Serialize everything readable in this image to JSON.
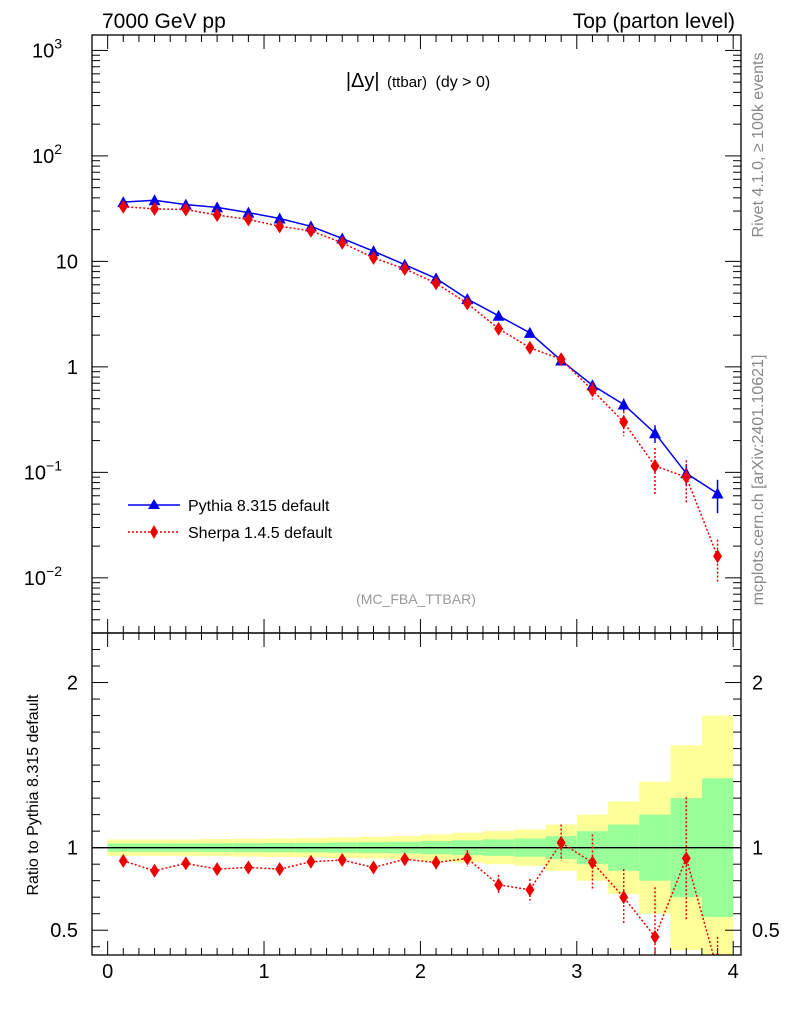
{
  "header": {
    "left": "7000 GeV pp",
    "right": "Top (parton level)"
  },
  "side_text": {
    "rivet": "Rivet 4.1.0, ≥ 100k events",
    "mcplots": "mcplots.cern.ch [arXiv:2401.10621]"
  },
  "plot_title": {
    "main": "|Δy|",
    "small": "(ttbar)",
    "cond": "(dy > 0)"
  },
  "analysis_tag": "(MC_FBA_TTBAR)",
  "colors": {
    "pythia": "#0000ee",
    "sherpa": "#ee0000",
    "band_inner": "#99ff99",
    "band_outer": "#ffff99"
  },
  "chart_data": [
    {
      "type": "line",
      "title": "|Δy| (ttbar) (dy > 0)",
      "xlabel": "",
      "ylabel": "",
      "yscale": "log",
      "xlim": [
        -0.1,
        4.05
      ],
      "ylim": [
        0.003,
        1400
      ],
      "y_ticks": [
        {
          "value": 1000,
          "label": "10",
          "exp": "3"
        },
        {
          "value": 100,
          "label": "10",
          "exp": "2"
        },
        {
          "value": 10,
          "label": "10",
          "exp": ""
        },
        {
          "value": 1,
          "label": "1",
          "exp": ""
        },
        {
          "value": 0.1,
          "label": "10",
          "exp": "−1"
        },
        {
          "value": 0.01,
          "label": "10",
          "exp": "−2"
        }
      ],
      "x": [
        0.1,
        0.3,
        0.5,
        0.7,
        0.9,
        1.1,
        1.3,
        1.5,
        1.7,
        1.9,
        2.1,
        2.3,
        2.5,
        2.7,
        2.9,
        3.1,
        3.3,
        3.5,
        3.7,
        3.9
      ],
      "series": [
        {
          "name": "Pythia 8.315 default",
          "values": [
            36.5,
            38.0,
            34.5,
            32.5,
            29.0,
            25.5,
            21.5,
            16.5,
            12.5,
            9.3,
            6.9,
            4.4,
            3.05,
            2.1,
            1.15,
            0.67,
            0.44,
            0.235,
            0.098,
            0.063
          ],
          "errors": [
            1.0,
            1.0,
            0.9,
            0.9,
            0.8,
            0.7,
            0.6,
            0.5,
            0.4,
            0.3,
            0.25,
            0.18,
            0.14,
            0.1,
            0.08,
            0.07,
            0.06,
            0.045,
            0.022,
            0.022
          ]
        },
        {
          "name": "Sherpa 1.4.5 default",
          "values": [
            33.0,
            31.5,
            31.0,
            27.5,
            25.0,
            21.5,
            19.5,
            15.0,
            10.8,
            8.5,
            6.2,
            4.0,
            2.3,
            1.52,
            1.18,
            0.6,
            0.3,
            0.115,
            0.09,
            0.016
          ],
          "errors": [
            1.0,
            1.0,
            1.0,
            0.9,
            0.8,
            0.7,
            0.7,
            0.6,
            0.45,
            0.35,
            0.28,
            0.22,
            0.17,
            0.14,
            0.12,
            0.11,
            0.08,
            0.055,
            0.04,
            0.007
          ]
        }
      ],
      "legend": "bottom-left"
    },
    {
      "type": "line",
      "title": "",
      "xlabel": "",
      "ylabel": "Ratio to Pythia 8.315 default",
      "xlim": [
        -0.1,
        4.05
      ],
      "ylim": [
        0.35,
        2.3
      ],
      "x_ticks": [
        0,
        1,
        2,
        3,
        4
      ],
      "y_ticks": [
        0.5,
        1,
        2
      ],
      "x": [
        0.1,
        0.3,
        0.5,
        0.7,
        0.9,
        1.1,
        1.3,
        1.5,
        1.7,
        1.9,
        2.1,
        2.3,
        2.5,
        2.7,
        2.9,
        3.1,
        3.3,
        3.5,
        3.7,
        3.9
      ],
      "band_edges": [
        0.0,
        0.2,
        0.4,
        0.6,
        0.8,
        1.0,
        1.2,
        1.4,
        1.6,
        1.8,
        2.0,
        2.2,
        2.4,
        2.6,
        2.8,
        3.0,
        3.2,
        3.4,
        3.6,
        3.8,
        4.0
      ],
      "band_inner_half": [
        0.025,
        0.025,
        0.025,
        0.026,
        0.027,
        0.028,
        0.029,
        0.031,
        0.033,
        0.035,
        0.04,
        0.045,
        0.05,
        0.055,
        0.07,
        0.1,
        0.14,
        0.2,
        0.3,
        0.42
      ],
      "band_outer_half": [
        0.05,
        0.05,
        0.05,
        0.052,
        0.054,
        0.056,
        0.058,
        0.062,
        0.066,
        0.07,
        0.08,
        0.09,
        0.1,
        0.11,
        0.14,
        0.2,
        0.28,
        0.4,
        0.62,
        0.8
      ],
      "series": [
        {
          "name": "Sherpa 1.4.5 default",
          "values": [
            0.92,
            0.86,
            0.905,
            0.87,
            0.88,
            0.87,
            0.915,
            0.925,
            0.88,
            0.93,
            0.91,
            0.935,
            0.775,
            0.745,
            1.03,
            0.91,
            0.7,
            0.46,
            0.935,
            0.26
          ],
          "errors": [
            0.02,
            0.02,
            0.02,
            0.02,
            0.02,
            0.02,
            0.025,
            0.03,
            0.03,
            0.035,
            0.04,
            0.05,
            0.06,
            0.065,
            0.11,
            0.17,
            0.17,
            0.3,
            0.37,
            0.2
          ]
        }
      ]
    }
  ]
}
